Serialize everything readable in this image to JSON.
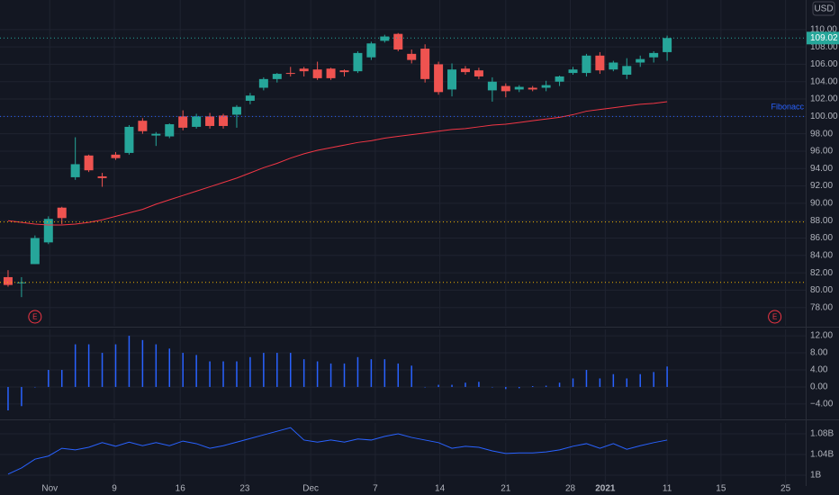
{
  "chart_data": [
    {
      "type": "candlestick",
      "currency": "USD",
      "up_color": "#26a69a",
      "down_color": "#ef5350",
      "open": [
        81.5,
        80.8,
        83,
        85.5,
        89.5,
        93,
        95.5,
        93.1,
        95.6,
        95.8,
        99.5,
        97.8,
        97.7,
        100,
        98.8,
        100,
        100.1,
        100.2,
        101.8,
        103.3,
        104.3,
        105,
        105.5,
        105.4,
        105.5,
        105.3,
        105.2,
        106.8,
        108.7,
        109.5,
        107.2,
        107.8,
        106,
        103.1,
        105.5,
        105.3,
        103,
        103.5,
        103.1,
        103.3,
        103.3,
        104,
        105,
        105,
        107,
        105.4,
        104.8,
        106.2,
        106.8,
        107.4
      ],
      "high": [
        82.3,
        81.5,
        86.3,
        88.5,
        89.6,
        97.6,
        95.6,
        93.5,
        95.9,
        99,
        99.8,
        98.2,
        99.2,
        100.7,
        100.3,
        100.4,
        100.3,
        101.3,
        102.7,
        104.5,
        105,
        105.7,
        105.7,
        106.3,
        105.6,
        105.4,
        107.5,
        108.6,
        109.4,
        109.6,
        107.7,
        108.3,
        106.3,
        106.1,
        105.8,
        105.6,
        104.5,
        103.8,
        103.6,
        103.5,
        104.1,
        104.7,
        105.7,
        107.2,
        107.4,
        106.4,
        106.7,
        107,
        107.5,
        109.3
      ],
      "low": [
        80.4,
        79.2,
        83,
        85.3,
        87.6,
        92.7,
        93.6,
        91.9,
        95,
        95.6,
        98,
        96.6,
        97.5,
        98.4,
        98.6,
        98.6,
        98.6,
        98.7,
        101.4,
        103,
        103.9,
        104.6,
        104.6,
        104.2,
        104.2,
        104.6,
        105,
        106.5,
        108.5,
        107.5,
        106.1,
        103.9,
        102.5,
        102.3,
        104.8,
        104.3,
        101.7,
        102.2,
        102.8,
        102.9,
        102.9,
        103.5,
        104.8,
        104.6,
        104.9,
        105.2,
        104.3,
        105.7,
        106.2,
        106.4
      ],
      "close": [
        80.6,
        80.9,
        86,
        88.2,
        88.3,
        94.5,
        93.8,
        92.9,
        95.2,
        98.8,
        98.3,
        98,
        99.1,
        98.7,
        100,
        98.9,
        98.9,
        101.1,
        102.4,
        104.3,
        104.9,
        104.9,
        105.2,
        104.4,
        104.4,
        105.1,
        107.3,
        108.4,
        109.2,
        107.7,
        106.5,
        104.3,
        102.8,
        105.4,
        105.1,
        104.6,
        104,
        102.9,
        103.4,
        103.1,
        103.6,
        104.6,
        105.4,
        107,
        105.3,
        106.2,
        105.8,
        106.6,
        107.3,
        109.02
      ],
      "ma": {
        "color": "#f23645",
        "values": [
          88.0,
          87.8,
          87.6,
          87.5,
          87.5,
          87.6,
          87.8,
          88.1,
          88.5,
          88.9,
          89.3,
          89.9,
          90.4,
          90.9,
          91.4,
          91.9,
          92.4,
          92.9,
          93.5,
          94.1,
          94.6,
          95.2,
          95.7,
          96.1,
          96.4,
          96.7,
          97.0,
          97.2,
          97.5,
          97.7,
          97.9,
          98.1,
          98.3,
          98.5,
          98.6,
          98.8,
          99.0,
          99.1,
          99.3,
          99.5,
          99.7,
          99.9,
          100.2,
          100.6,
          100.8,
          101.0,
          101.2,
          101.4,
          101.5,
          101.7
        ]
      },
      "levels": [
        {
          "value": 100,
          "color": "#2962ff",
          "label": "Fibonacc"
        },
        {
          "value": 87.85,
          "color": "#f0b400"
        },
        {
          "value": 80.9,
          "color": "#f0b400"
        }
      ],
      "events": [
        {
          "x": 2,
          "label": "E"
        },
        {
          "x": 57,
          "label": "E"
        }
      ],
      "xlim": [
        -0.6,
        59.3
      ],
      "ylim": [
        75.9,
        113.4
      ],
      "yticks": [
        {
          "value": 78,
          "label": "78.00"
        },
        {
          "value": 80,
          "label": "80.00"
        },
        {
          "value": 82,
          "label": "82.00"
        },
        {
          "value": 84,
          "label": "84.00"
        },
        {
          "value": 86,
          "label": "86.00"
        },
        {
          "value": 88,
          "label": "88.00"
        },
        {
          "value": 90,
          "label": "90.00"
        },
        {
          "value": 92,
          "label": "92.00"
        },
        {
          "value": 94,
          "label": "94.00"
        },
        {
          "value": 96,
          "label": "96.00"
        },
        {
          "value": 98,
          "label": "98.00"
        },
        {
          "value": 100,
          "label": "100.00"
        },
        {
          "value": 102,
          "label": "102.00"
        },
        {
          "value": 104,
          "label": "104.00"
        },
        {
          "value": 106,
          "label": "106.00"
        },
        {
          "value": 108,
          "label": "108.00"
        },
        {
          "value": 110,
          "label": "110.00"
        }
      ]
    },
    {
      "type": "bar",
      "color": "#2962ff",
      "values": [
        -5.5,
        -4.5,
        0,
        4,
        4,
        10,
        10,
        8,
        10,
        12,
        11,
        10,
        9,
        8,
        7.5,
        6,
        6,
        6,
        7,
        8,
        8,
        8,
        6.5,
        6,
        5.5,
        5.5,
        7,
        6.5,
        6.5,
        5.5,
        5,
        0,
        0.5,
        0.5,
        1,
        1.2,
        0,
        -0.5,
        -0.3,
        0.2,
        0.3,
        1,
        2,
        4,
        2,
        3,
        2,
        3,
        3.5,
        4.8
      ],
      "xlim": [
        -0.6,
        59.3
      ],
      "ylim": [
        -7.4,
        13.5
      ],
      "yticks": [
        {
          "value": -4,
          "label": "−4.00"
        },
        {
          "value": 0,
          "label": "0.00"
        },
        {
          "value": 4,
          "label": "4.00"
        },
        {
          "value": 8,
          "label": "8.00"
        },
        {
          "value": 12,
          "label": "12.00"
        }
      ]
    },
    {
      "type": "line",
      "color": "#2962ff",
      "values": [
        1.002,
        1.014,
        1.031,
        1.037,
        1.052,
        1.049,
        1.054,
        1.063,
        1.056,
        1.064,
        1.057,
        1.063,
        1.057,
        1.066,
        1.061,
        1.052,
        1.057,
        1.064,
        1.071,
        1.078,
        1.085,
        1.092,
        1.068,
        1.064,
        1.068,
        1.064,
        1.07,
        1.068,
        1.075,
        1.08,
        1.073,
        1.068,
        1.063,
        1.052,
        1.056,
        1.054,
        1.047,
        1.042,
        1.043,
        1.043,
        1.045,
        1.049,
        1.056,
        1.061,
        1.052,
        1.061,
        1.05,
        1.057,
        1.063,
        1.068
      ],
      "xlim": [
        -0.6,
        59.3
      ],
      "ylim": [
        0.979,
        1.101
      ],
      "yticks": [
        {
          "value": 1,
          "label": "1B"
        },
        {
          "value": 1.04,
          "label": "1.04B"
        },
        {
          "value": 1.08,
          "label": "1.08B"
        }
      ],
      "xticks": [
        {
          "value": 3.1,
          "label": "Nov"
        },
        {
          "value": 7.9,
          "label": "9"
        },
        {
          "value": 12.8,
          "label": "16"
        },
        {
          "value": 17.6,
          "label": "23"
        },
        {
          "value": 22.5,
          "label": "Dec"
        },
        {
          "value": 27.3,
          "label": "7"
        },
        {
          "value": 32.1,
          "label": "14"
        },
        {
          "value": 37,
          "label": "21"
        },
        {
          "value": 41.8,
          "label": "28"
        },
        {
          "value": 44.4,
          "label": "2021"
        },
        {
          "value": 49,
          "label": "11"
        },
        {
          "value": 53,
          "label": "15"
        },
        {
          "value": 57.8,
          "label": "25"
        }
      ]
    }
  ]
}
